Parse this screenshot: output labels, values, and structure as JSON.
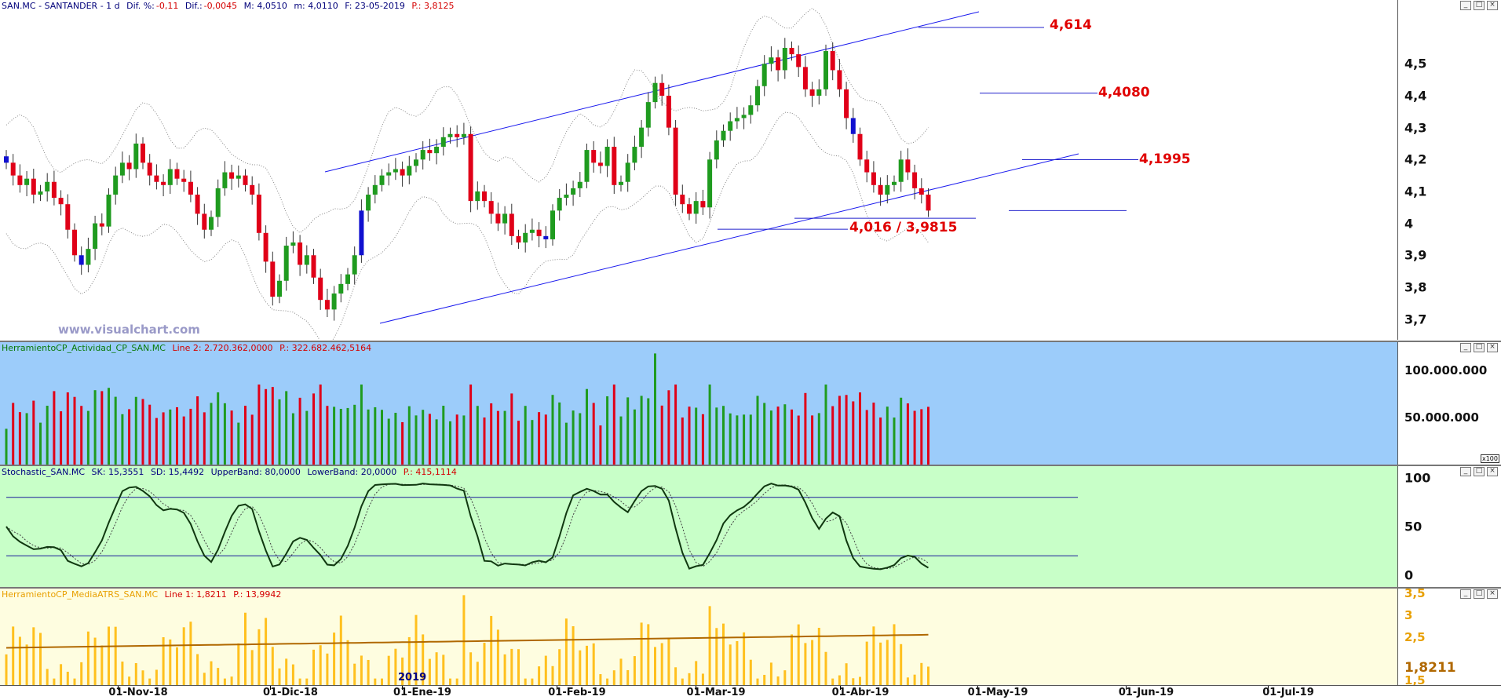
{
  "colors": {
    "up": "#1f9b1f",
    "down": "#e00018",
    "blue_candle": "#1010d0",
    "channel": "#1a1aee",
    "level": "#2020cc",
    "volume_bg": "#9cccfa",
    "stoch_bg": "#c8ffc8",
    "atr_bg": "#fefde0",
    "atr_bar": "#ffc01e",
    "atr_ma": "#b06800",
    "annotation": "#e00000"
  },
  "price_header": {
    "symbol": "SAN.MC - SANTANDER - 1 d",
    "dif_pct_label": "Dif. %:",
    "dif_pct": "-0,11",
    "dif_label": "Dif.:",
    "dif": "-0,0045",
    "max": "M: 4,0510",
    "min": "m: 4,0110",
    "date": "F: 23-05-2019",
    "price": "P.: 3,8125"
  },
  "watermark": "www.visualchart.com",
  "volume_header": {
    "name": "HerramientoCP_Actividad_CP_SAN.MC",
    "line": "Line 2: 2.720.362,0000",
    "p": "P.: 322.682.462,5164"
  },
  "stoch_header": {
    "name": "Stochastic_SAN.MC",
    "sk": "SK: 15,3551",
    "sd": "SD: 15,4492",
    "ub": "UpperBand: 80,0000",
    "lb": "LowerBand: 20,0000",
    "p": "P.: 415,1114"
  },
  "atr_header": {
    "name": "HerramientoCP_MediaATRS_SAN.MC",
    "line": "Line 1: 1,8211",
    "p": "P.: 13,9942"
  },
  "annotations": {
    "a1": "4,614",
    "a2": "4,4080",
    "a3": "4,1995",
    "a4": "4,016 / 3,9815"
  },
  "atr_current": "1,8211",
  "volume_scale_tag": "x100",
  "year_label": "2019",
  "chart_data": [
    {
      "type": "candlestick",
      "ticker": "SAN.MC",
      "interval": "1 d",
      "y_ticks": [
        "4,5",
        "4,4",
        "4,3",
        "4,2",
        "4,1",
        "4",
        "3,9",
        "3,8",
        "3,7"
      ],
      "ylim": [
        3.635,
        4.7
      ],
      "x_ticks": [
        "01-Nov-18",
        "01-Dic-18",
        "01-Ene-19",
        "01-Feb-19",
        "01-Mar-19",
        "01-Abr-19",
        "01-May-19",
        "01-Jun-19",
        "01-Jul-19"
      ],
      "levels": [
        4.614,
        4.408,
        4.1995,
        4.016,
        3.9815
      ],
      "closes": [
        4.19,
        4.15,
        4.12,
        4.14,
        4.09,
        4.1,
        4.13,
        4.08,
        4.06,
        3.98,
        3.9,
        3.87,
        3.92,
        4.0,
        3.99,
        4.09,
        4.15,
        4.19,
        4.17,
        4.25,
        4.19,
        4.15,
        4.13,
        4.12,
        4.17,
        4.14,
        4.13,
        4.09,
        4.03,
        3.98,
        4.02,
        4.11,
        4.16,
        4.14,
        4.15,
        4.12,
        4.09,
        3.97,
        3.88,
        3.77,
        3.82,
        3.93,
        3.94,
        3.87,
        3.9,
        3.83,
        3.76,
        3.73,
        3.78,
        3.81,
        3.84,
        3.9,
        4.04,
        4.09,
        4.12,
        4.15,
        4.16,
        4.17,
        4.15,
        4.18,
        4.2,
        4.23,
        4.22,
        4.24,
        4.27,
        4.28,
        4.27,
        4.28,
        4.07,
        4.1,
        4.07,
        4.03,
        4.0,
        4.03,
        3.96,
        3.94,
        3.97,
        3.98,
        3.96,
        3.95,
        4.04,
        4.08,
        4.09,
        4.11,
        4.13,
        4.23,
        4.19,
        4.18,
        4.24,
        4.12,
        4.13,
        4.19,
        4.24,
        4.3,
        4.38,
        4.44,
        4.4,
        4.3,
        4.09,
        4.06,
        4.03,
        4.07,
        4.05,
        4.2,
        4.26,
        4.29,
        4.32,
        4.33,
        4.34,
        4.37,
        4.43,
        4.5,
        4.52,
        4.48,
        4.55,
        4.53,
        4.49,
        4.42,
        4.4,
        4.42,
        4.54,
        4.48,
        4.42,
        4.33,
        4.28,
        4.2,
        4.16,
        4.12,
        4.09,
        4.12,
        4.13,
        4.2,
        4.16,
        4.11,
        4.09,
        4.04
      ]
    },
    {
      "type": "bar",
      "name": "HerramientoCP_Actividad_CP_SAN.MC",
      "y_ticks": [
        "100.000.000",
        "50.000.000"
      ],
      "ylim": [
        0,
        130000000
      ]
    },
    {
      "type": "line",
      "name": "Stochastic_SAN.MC",
      "y_ticks": [
        "100",
        "50",
        "0"
      ],
      "ylim": [
        -12,
        112
      ],
      "bands": [
        80,
        20
      ],
      "sk_last": 15.3551,
      "sd_last": 15.4492
    },
    {
      "type": "bar",
      "name": "HerramientoCP_MediaATRS_SAN.MC",
      "y_ticks": [
        "3,5",
        "3",
        "2,5",
        "1,5"
      ],
      "ylim": [
        1.4,
        3.6
      ],
      "last": 1.8211
    }
  ]
}
